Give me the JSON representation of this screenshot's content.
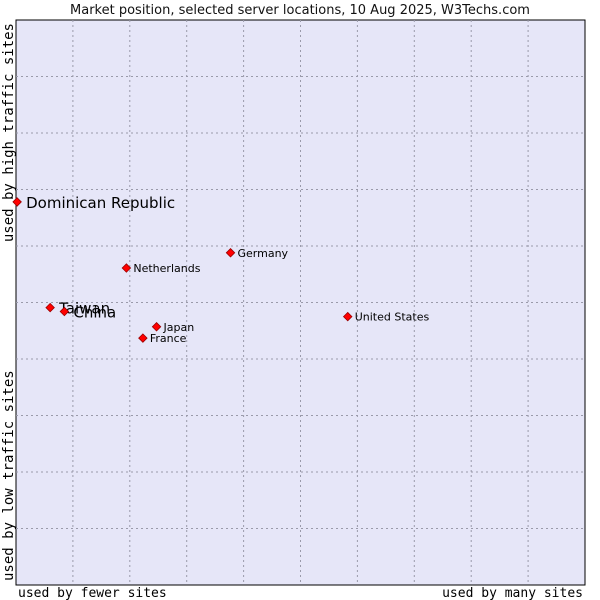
{
  "chart_data": {
    "type": "scatter",
    "title": "Market position, selected server locations, 10 Aug 2025, W3Techs.com",
    "xlabel_left": "used by fewer sites",
    "xlabel_right": "used by many sites",
    "ylabel_bottom": "used by low traffic sites",
    "ylabel_top": "used by high traffic sites",
    "xlim": [
      0,
      100
    ],
    "ylim": [
      0,
      100
    ],
    "grid": true,
    "points": [
      {
        "label": "Dominican Republic",
        "x": 0.2,
        "y": 67.8,
        "label_size": "large"
      },
      {
        "label": "Germany",
        "x": 37.7,
        "y": 58.8,
        "label_size": "small"
      },
      {
        "label": "Netherlands",
        "x": 19.4,
        "y": 56.1,
        "label_size": "small"
      },
      {
        "label": "Taiwan",
        "x": 6.0,
        "y": 49.1,
        "label_size": "large"
      },
      {
        "label": "China",
        "x": 8.5,
        "y": 48.4,
        "label_size": "large"
      },
      {
        "label": "United States",
        "x": 58.3,
        "y": 47.5,
        "label_size": "small"
      },
      {
        "label": "Japan",
        "x": 24.7,
        "y": 45.7,
        "label_size": "small"
      },
      {
        "label": "France",
        "x": 22.3,
        "y": 43.7,
        "label_size": "small"
      }
    ]
  },
  "colors": {
    "plot_background": "#e6e6f8",
    "grid": "#9a9aaa",
    "point": "#ff0000",
    "point_outline": "#9a0000"
  }
}
